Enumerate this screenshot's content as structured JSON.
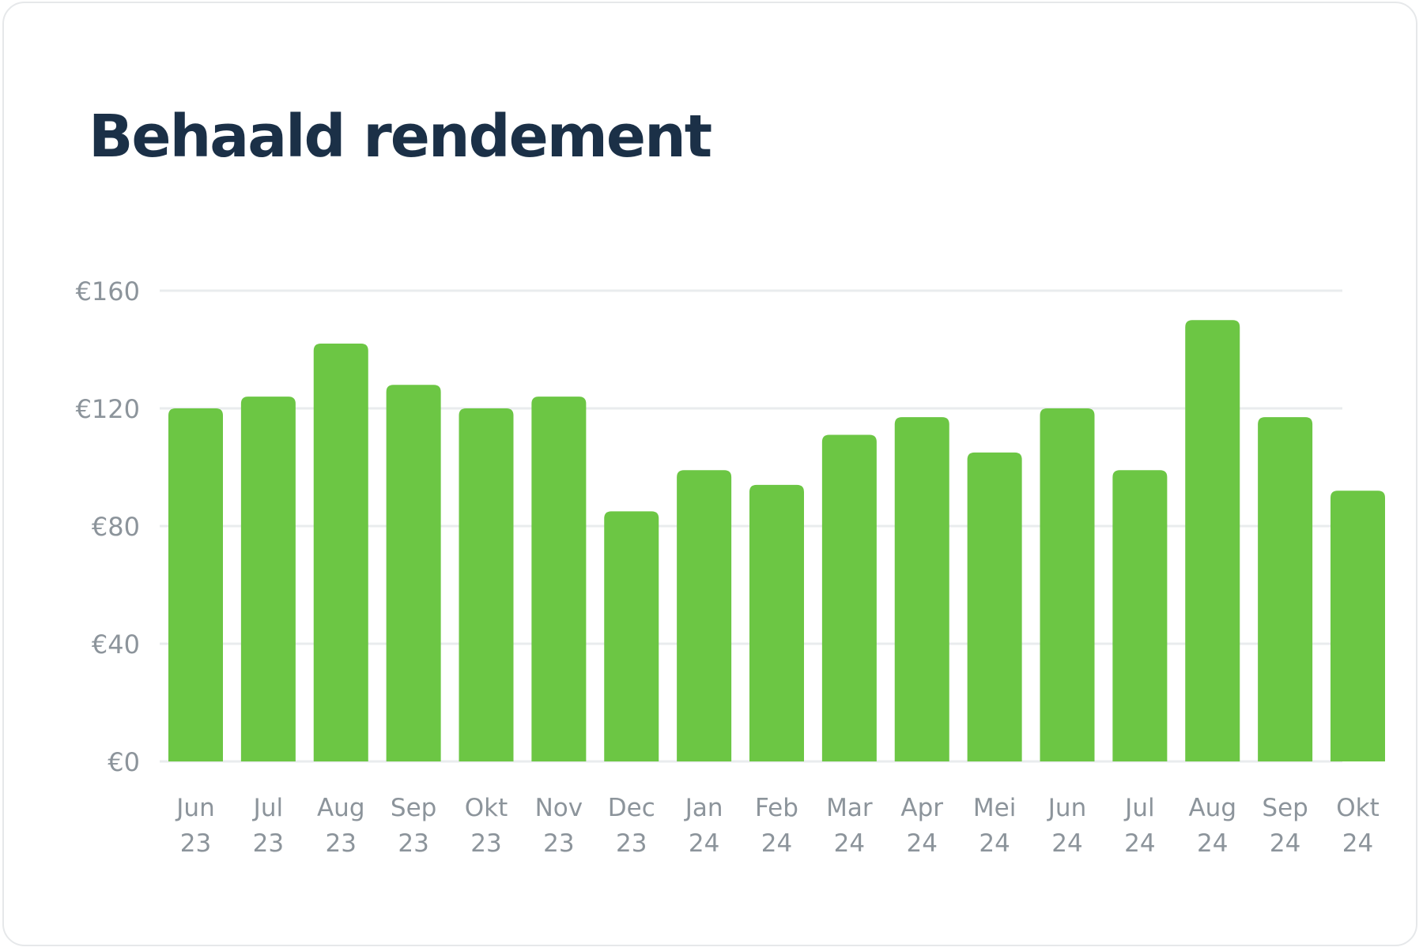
{
  "card": {
    "title": "Behaald rendement"
  },
  "chart_data": {
    "type": "bar",
    "title": "Behaald rendement",
    "xlabel": "",
    "ylabel": "",
    "ylim": [
      0,
      160
    ],
    "yticks": [
      0,
      40,
      80,
      120,
      160
    ],
    "ytick_labels": [
      "€0",
      "€40",
      "€80",
      "€120",
      "€160"
    ],
    "grid": true,
    "bar_color": "#6cc644",
    "categories": [
      [
        "Jun",
        "23"
      ],
      [
        "Jul",
        "23"
      ],
      [
        "Aug",
        "23"
      ],
      [
        "Sep",
        "23"
      ],
      [
        "Okt",
        "23"
      ],
      [
        "Nov",
        "23"
      ],
      [
        "Dec",
        "23"
      ],
      [
        "Jan",
        "24"
      ],
      [
        "Feb",
        "24"
      ],
      [
        "Mar",
        "24"
      ],
      [
        "Apr",
        "24"
      ],
      [
        "Mei",
        "24"
      ],
      [
        "Jun",
        "24"
      ],
      [
        "Jul",
        "24"
      ],
      [
        "Aug",
        "24"
      ],
      [
        "Sep",
        "24"
      ],
      [
        "Okt",
        "24"
      ]
    ],
    "values": [
      120,
      124,
      142,
      128,
      120,
      124,
      85,
      99,
      94,
      111,
      117,
      105,
      120,
      99,
      150,
      117,
      92
    ]
  }
}
